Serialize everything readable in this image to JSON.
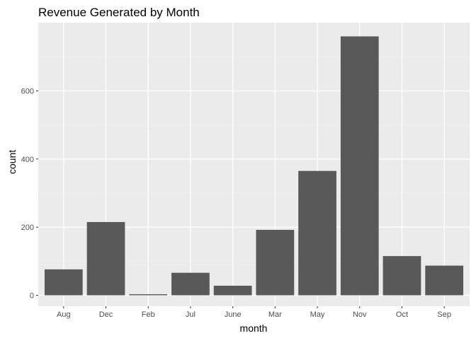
{
  "chart_data": {
    "type": "bar",
    "title": "Revenue Generated by Month",
    "xlabel": "month",
    "ylabel": "count",
    "categories": [
      "Aug",
      "Dec",
      "Feb",
      "Jul",
      "June",
      "Mar",
      "May",
      "Nov",
      "Oct",
      "Sep"
    ],
    "values": [
      76,
      215,
      3,
      66,
      28,
      192,
      365,
      760,
      115,
      87
    ],
    "ylim": [
      0,
      800
    ],
    "yticks": [
      0,
      200,
      400,
      600
    ],
    "grid": true,
    "legend": "none",
    "colors": {
      "bar": "#595959",
      "panel": "#ebebeb",
      "grid_major": "#ffffff",
      "grid_minor": "#f2f2f2",
      "tick_text": "#4d4d4d",
      "tick_mark": "#333333"
    }
  }
}
